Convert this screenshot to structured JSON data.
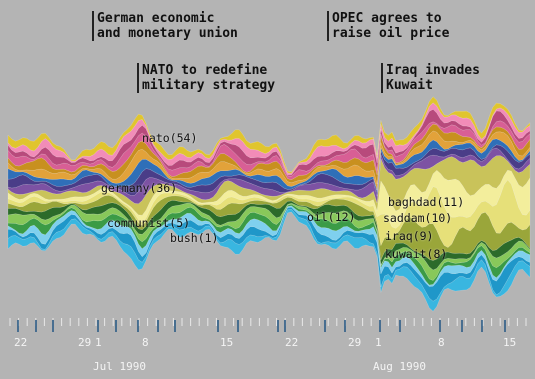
{
  "annotations": [
    {
      "id": "german-union",
      "lines": [
        "German economic",
        "and monetary union"
      ]
    },
    {
      "id": "opec",
      "lines": [
        "OPEC agrees to",
        "raise oil price"
      ]
    },
    {
      "id": "nato",
      "lines": [
        "NATO to redefine",
        "military strategy"
      ]
    },
    {
      "id": "iraq",
      "lines": [
        "Iraq invades",
        "Kuwait"
      ]
    }
  ],
  "chart_data": {
    "type": "area",
    "subtype": "streamgraph",
    "x_axis": {
      "tick_labels": [
        "22",
        "29",
        "1",
        "8",
        "15",
        "22",
        "29",
        "1",
        "8",
        "15"
      ],
      "months": [
        "Jul 1990",
        "Aug 1990"
      ]
    },
    "labeled_terms": [
      {
        "term": "nato",
        "count": 54,
        "text": "nato(54)"
      },
      {
        "term": "germany",
        "count": 36,
        "text": "germany(36)"
      },
      {
        "term": "communist",
        "count": 5,
        "text": "communist(5)"
      },
      {
        "term": "bush",
        "count": 1,
        "text": "bush(1)"
      },
      {
        "term": "oil",
        "count": 12,
        "text": "oil(12)"
      },
      {
        "term": "baghdad",
        "count": 11,
        "text": "baghdad(11)"
      },
      {
        "term": "saddam",
        "count": 10,
        "text": "saddam(10)"
      },
      {
        "term": "iraq",
        "count": 9,
        "text": "iraq(9)"
      },
      {
        "term": "kuwait",
        "count": 8,
        "text": "kuwait(8)"
      }
    ],
    "colors": {
      "background": "#b4b4b4",
      "layers": [
        "#39b6e0",
        "#1f97c9",
        "#7fd0ee",
        "#3b9b46",
        "#88c85a",
        "#2c6b2a",
        "#9aa63a",
        "#e6e079",
        "#f3ee9c",
        "#c9c35a",
        "#7d52a3",
        "#4a3d88",
        "#2f6fb8",
        "#e2a23a",
        "#c8901f",
        "#d85f95",
        "#b84a7c",
        "#f28cb8",
        "#e0c52e"
      ]
    },
    "grid": false
  }
}
